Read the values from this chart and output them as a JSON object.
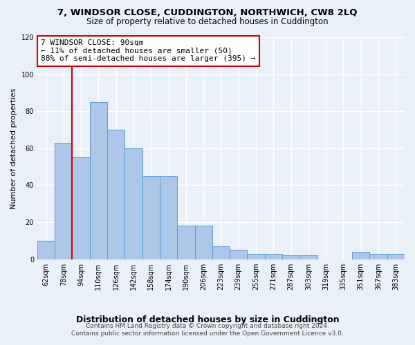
{
  "title": "7, WINDSOR CLOSE, CUDDINGTON, NORTHWICH, CW8 2LQ",
  "subtitle": "Size of property relative to detached houses in Cuddington",
  "xlabel": "Distribution of detached houses by size in Cuddington",
  "ylabel": "Number of detached properties",
  "footer_line1": "Contains HM Land Registry data © Crown copyright and database right 2024.",
  "footer_line2": "Contains public sector information licensed under the Open Government Licence v3.0.",
  "bar_labels": [
    "62sqm",
    "78sqm",
    "94sqm",
    "110sqm",
    "126sqm",
    "142sqm",
    "158sqm",
    "174sqm",
    "190sqm",
    "206sqm",
    "223sqm",
    "239sqm",
    "255sqm",
    "271sqm",
    "287sqm",
    "303sqm",
    "319sqm",
    "335sqm",
    "351sqm",
    "367sqm",
    "383sqm"
  ],
  "bar_values": [
    10,
    63,
    55,
    85,
    70,
    60,
    45,
    45,
    18,
    18,
    7,
    5,
    3,
    3,
    2,
    2,
    0,
    0,
    4,
    3,
    3
  ],
  "bar_color": "#aec6e8",
  "bar_edge_color": "#5b9bd5",
  "bg_color": "#eaf0f8",
  "grid_color": "#ffffff",
  "annotation_line1": "7 WINDSOR CLOSE: 90sqm",
  "annotation_line2": "← 11% of detached houses are smaller (50)",
  "annotation_line3": "88% of semi-detached houses are larger (395) →",
  "annotation_box_color": "#ffffff",
  "annotation_box_edge_color": "#cc0000",
  "vline_x": 1.5,
  "vline_color": "#cc0000",
  "ylim": [
    0,
    120
  ],
  "yticks": [
    0,
    20,
    40,
    60,
    80,
    100,
    120
  ],
  "title_fontsize": 9.5,
  "subtitle_fontsize": 8.5,
  "xlabel_fontsize": 9,
  "ylabel_fontsize": 8,
  "annotation_fontsize": 8,
  "footer_fontsize": 6.5,
  "tick_label_fontsize": 7
}
